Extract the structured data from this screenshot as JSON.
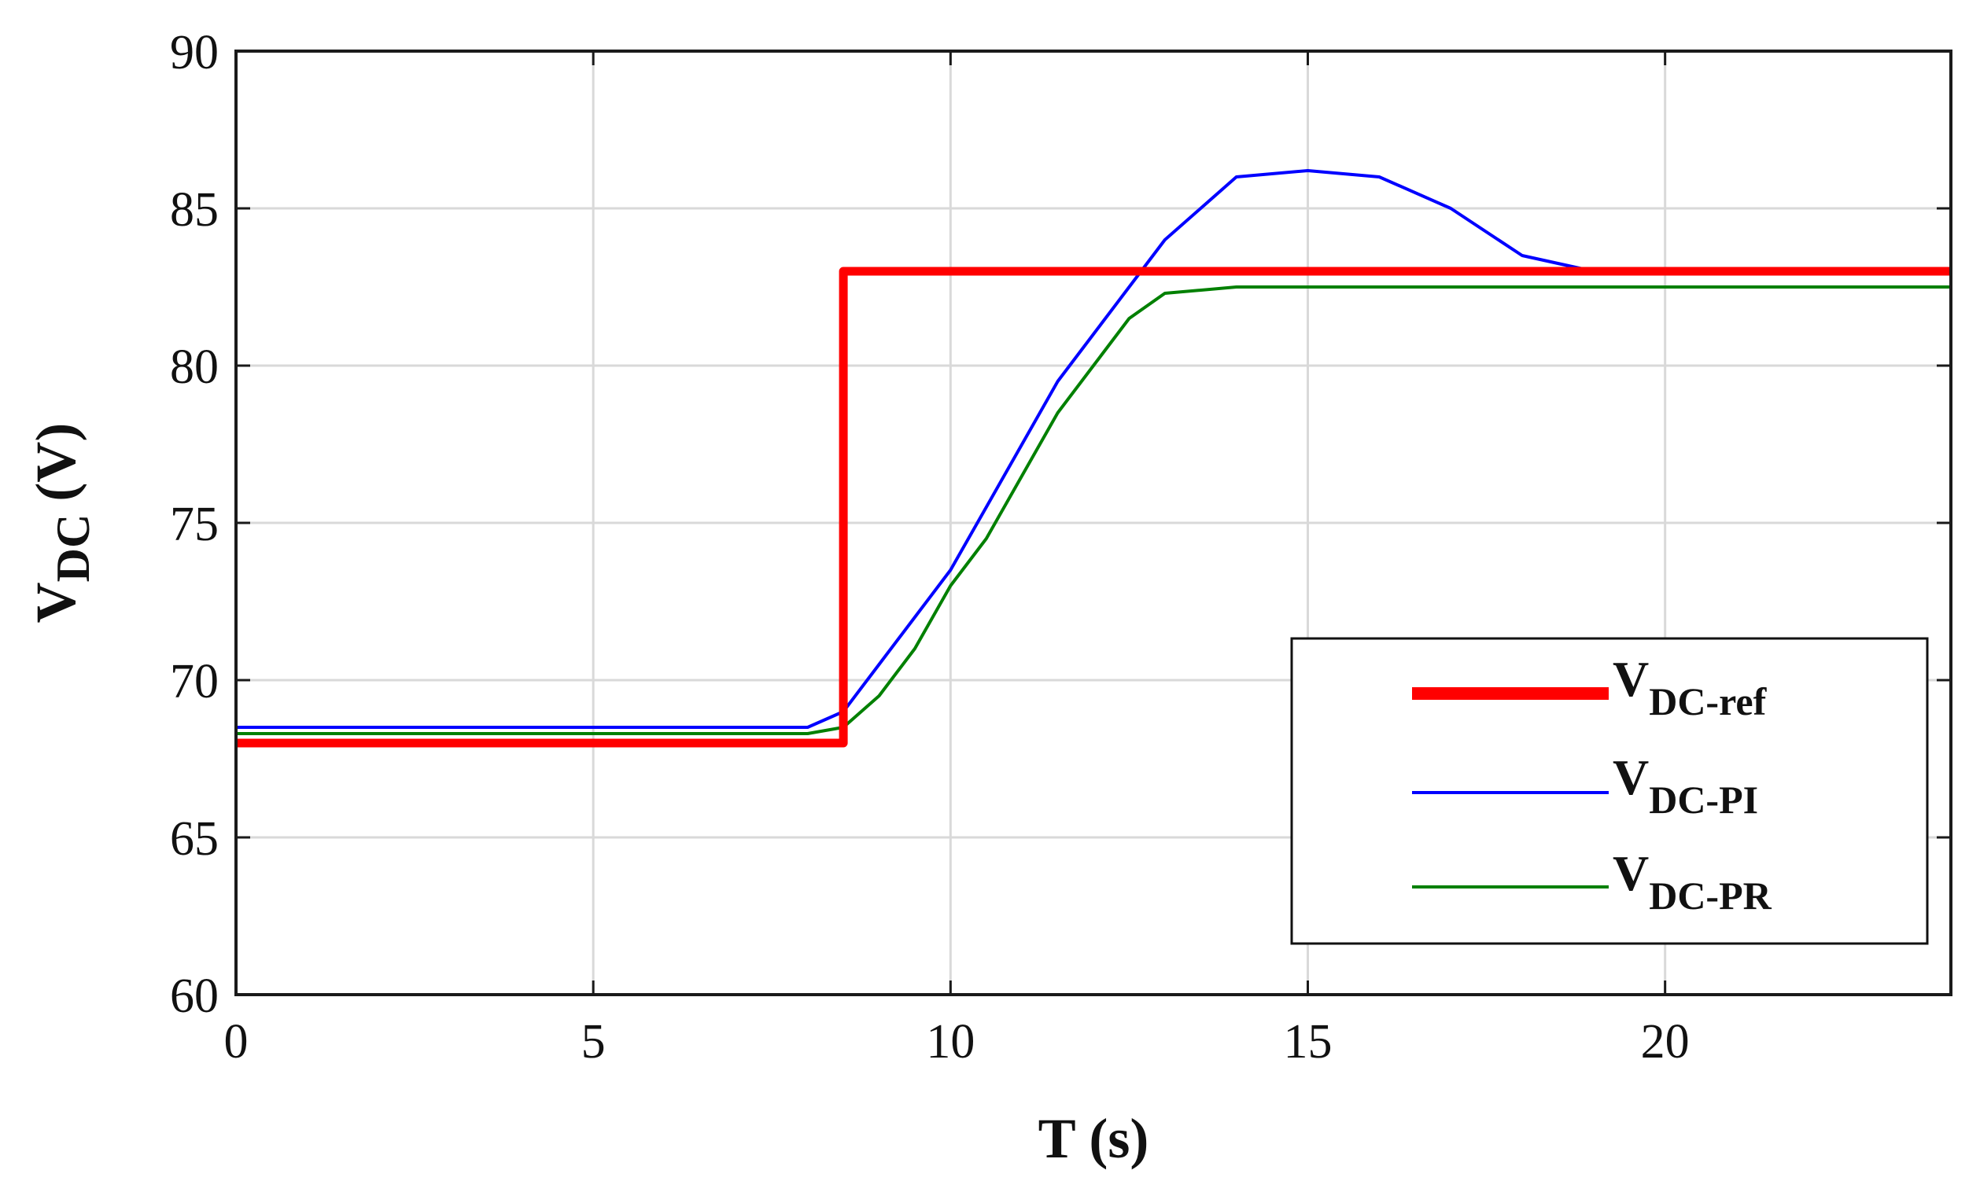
{
  "chart_data": {
    "type": "line",
    "xlabel": "T (s)",
    "ylabel_main": "V",
    "ylabel_sub": "DC",
    "ylabel_unit": "(V)",
    "xlim": [
      0,
      24
    ],
    "ylim": [
      60,
      90
    ],
    "x_ticks": [
      0,
      5,
      10,
      15,
      20
    ],
    "y_ticks": [
      60,
      65,
      70,
      75,
      80,
      85,
      90
    ],
    "grid": true,
    "legend_position": "bottom-right",
    "series": [
      {
        "name_main": "V",
        "name_sub": "DC-ref",
        "color": "#ff0000",
        "x": [
          0,
          8.5,
          8.5,
          24
        ],
        "y": [
          68,
          68,
          83,
          83
        ]
      },
      {
        "name_main": "V",
        "name_sub": "DC-PI",
        "color": "#0000ff",
        "x": [
          0,
          1,
          2,
          3,
          4,
          5,
          6,
          7,
          8,
          8.5,
          9,
          9.5,
          10,
          10.5,
          11,
          11.5,
          12,
          12.5,
          13,
          13.5,
          14,
          15,
          16,
          17,
          18,
          19,
          20,
          21,
          22,
          23,
          24
        ],
        "y": [
          68.5,
          68.5,
          68.5,
          68.5,
          68.5,
          68.5,
          68.5,
          68.5,
          68.5,
          69,
          70.5,
          72,
          73.5,
          75.5,
          77.5,
          79.5,
          81,
          82.5,
          84,
          85,
          86,
          86.2,
          86,
          85,
          83.5,
          83,
          83,
          83,
          83,
          83,
          83
        ]
      },
      {
        "name_main": "V",
        "name_sub": "DC-PR",
        "color": "#008000",
        "x": [
          0,
          1,
          2,
          3,
          4,
          5,
          6,
          7,
          8,
          8.5,
          9,
          9.5,
          10,
          10.5,
          11,
          11.5,
          12,
          12.5,
          13,
          14,
          15,
          16,
          17,
          18,
          19,
          20,
          21,
          22,
          23,
          24
        ],
        "y": [
          68.3,
          68.3,
          68.3,
          68.3,
          68.3,
          68.3,
          68.3,
          68.3,
          68.3,
          68.5,
          69.5,
          71,
          73,
          74.5,
          76.5,
          78.5,
          80,
          81.5,
          82.3,
          82.5,
          82.5,
          82.5,
          82.5,
          82.5,
          82.5,
          82.5,
          82.5,
          82.5,
          82.5,
          82.5
        ]
      }
    ]
  }
}
